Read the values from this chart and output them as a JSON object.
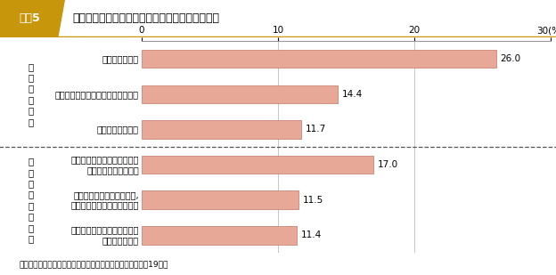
{
  "title_badge": "図表5",
  "title_text": "家具や冷蔵庫などを固定しない理由（複数回答）",
  "title_badge_bg": "#c8960a",
  "title_bg": "#f0e8d0",
  "categories": [
    "面倒くさいから",
    "転倒しても危険ではないと思うから",
    "お金がかかるから",
    "固定しても大地震のときには\n効果がないと思うから",
    "固定する方法はわかっても,\n自分ではできないと思うから",
    "どうやって固定したらよいか\nわからないから"
  ],
  "values": [
    26.0,
    14.4,
    11.7,
    17.0,
    11.5,
    11.4
  ],
  "bar_color": "#e8a898",
  "bar_edge_color": "#c07868",
  "group_labels": [
    "切\n迫\n性\nの\n欠\n如",
    "実\n践\n的\n知\n識\nの\n欠\n如"
  ],
  "xlim": [
    0,
    30
  ],
  "xticks": [
    0,
    10,
    20,
    30
  ],
  "source": "資料：内閣府「地震防災対策に関する特別世論調査」（平成19年）",
  "bg_color": "#ffffff",
  "border_color": "#999999"
}
